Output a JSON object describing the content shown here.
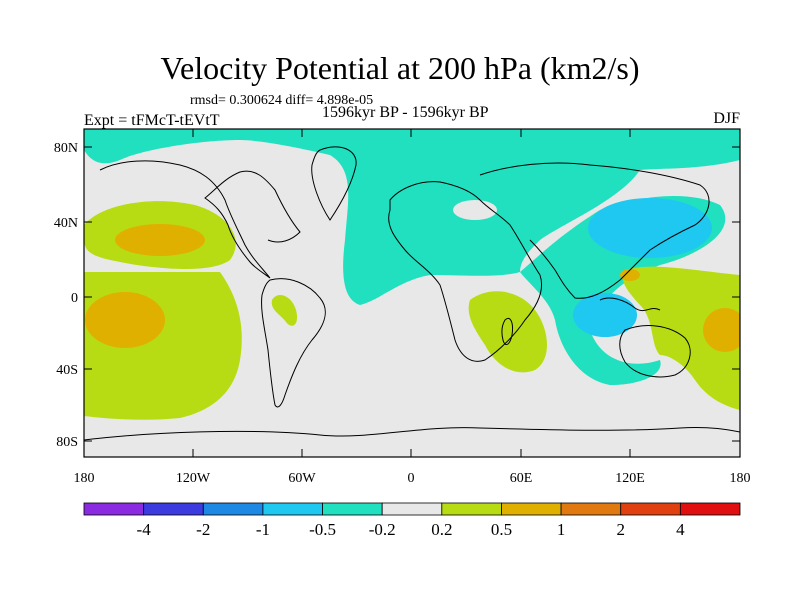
{
  "title": "Velocity Potential at 200 hPa (km2/s)",
  "stats": "rmsd= 0.300624 diff= 4.898e-05",
  "expt": "Expt = tFMcT-tEVtT",
  "period": "1596kyr BP - 1596kyr BP",
  "season": "DJF",
  "lat_labels": [
    "80N",
    "40N",
    "0",
    "40S",
    "80S"
  ],
  "lon_labels": [
    "180",
    "120W",
    "60W",
    "0",
    "60E",
    "120E",
    "180"
  ],
  "colorbar": {
    "labels": [
      "-4",
      "-2",
      "-1",
      "-0.5",
      "-0.2",
      "0.2",
      "0.5",
      "1",
      "2",
      "4"
    ],
    "colors": [
      "#8a2be2",
      "#3b3be0",
      "#1e88e5",
      "#1ec8f0",
      "#20e0c0",
      "#e8e8e8",
      "#b8dc14",
      "#e0b000",
      "#e07a10",
      "#e04010",
      "#e01010"
    ]
  }
}
